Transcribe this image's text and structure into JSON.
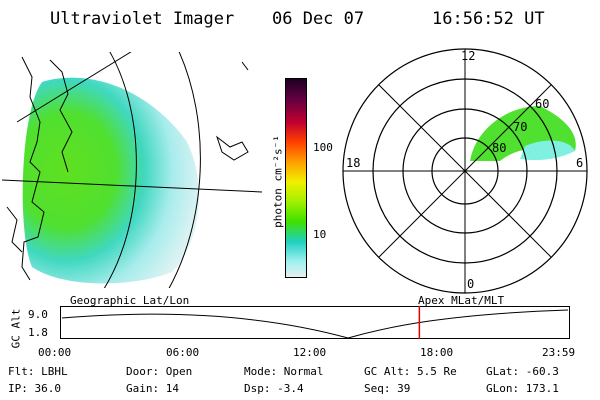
{
  "header": {
    "instrument": "Ultraviolet Imager",
    "date": "06 Dec 07",
    "time": "16:56:52 UT"
  },
  "map_left": {
    "projection_label": "Geographic Lat/Lon"
  },
  "colorbar": {
    "unit_label": "photon cm⁻²s⁻¹",
    "ticks": [
      "100",
      "10"
    ],
    "colors": [
      "#1a0020",
      "#4a0040",
      "#80002a",
      "#c00030",
      "#ff3000",
      "#ff9000",
      "#ffe000",
      "#a0f000",
      "#50e000",
      "#20d0c0",
      "#70f0f0",
      "#d0f0f0"
    ]
  },
  "polar": {
    "projection_label": "Apex MLat/MLT",
    "mlt_labels": [
      "12",
      "18",
      "6",
      "0"
    ],
    "mlat_labels": [
      "60",
      "70",
      "80"
    ]
  },
  "alt_plot": {
    "ylabel": "GC Alt",
    "yticks": [
      "9.0",
      "1.8"
    ],
    "xticks": [
      "00:00",
      "06:00",
      "12:00",
      "18:00",
      "23:59"
    ],
    "marker_time_hours": 16.95,
    "accent_color": "#e00000"
  },
  "status": {
    "col1": [
      "Flt: LBHL",
      "IP: 36.0"
    ],
    "col2": [
      "Door: Open",
      "Gain: 14"
    ],
    "col3": [
      "Mode: Normal",
      "Dsp:   -3.4"
    ],
    "col4": [
      "GC Alt: 5.5 Re",
      "Seq: 39"
    ],
    "col5": [
      "GLat: -60.3",
      "GLon: 173.1"
    ]
  }
}
